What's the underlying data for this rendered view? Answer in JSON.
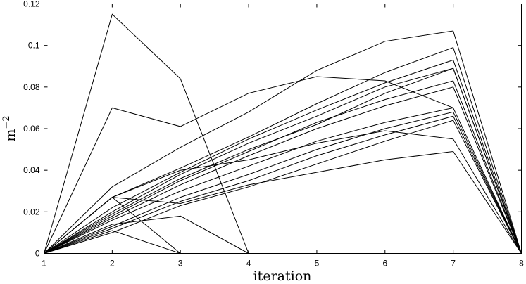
{
  "chart_data": {
    "type": "line",
    "xlabel": "iteration",
    "ylabel": "m",
    "ylabel_exponent": "−2",
    "xlim": [
      1,
      8
    ],
    "ylim": [
      0,
      0.12
    ],
    "xticks": [
      "1",
      "2",
      "3",
      "4",
      "5",
      "6",
      "7",
      "8"
    ],
    "yticks": [
      "0",
      "0.02",
      "0.04",
      "0.06",
      "0.08",
      "0.1",
      "0.12"
    ],
    "grid": false,
    "series": [
      {
        "x": [
          1,
          2,
          3,
          4
        ],
        "values": [
          0,
          0.115,
          0.084,
          0
        ]
      },
      {
        "x": [
          1,
          2,
          3,
          4,
          5,
          6,
          7
        ],
        "values": [
          0,
          0.07,
          0.061,
          0.077,
          0.085,
          0.083,
          0.07
        ]
      },
      {
        "x": [
          1,
          2,
          3,
          4,
          5,
          6,
          7,
          8
        ],
        "values": [
          0,
          0.032,
          0.051,
          0.068,
          0.088,
          0.102,
          0.107,
          0
        ]
      },
      {
        "x": [
          1,
          2,
          3
        ],
        "values": [
          0,
          0.027,
          0
        ]
      },
      {
        "x": [
          1,
          2,
          3
        ],
        "values": [
          0,
          0.011,
          0
        ]
      },
      {
        "x": [
          1,
          2,
          3,
          4
        ],
        "values": [
          0,
          0.014,
          0.018,
          0
        ]
      },
      {
        "x": [
          1,
          2,
          3,
          4,
          5,
          6,
          7,
          8
        ],
        "values": [
          0,
          0.027,
          0.024,
          0.033,
          0.039,
          0.045,
          0.049,
          0
        ]
      },
      {
        "x": [
          1,
          2,
          3,
          4,
          5,
          6,
          7,
          8
        ],
        "values": [
          0,
          0.027,
          0.04,
          0.045,
          0.053,
          0.059,
          0.055,
          0
        ]
      },
      {
        "x": [
          1,
          2,
          3,
          4,
          5,
          6,
          7,
          8
        ],
        "values": [
          0,
          0.01,
          0.023,
          0.032,
          0.043,
          0.054,
          0.064,
          0
        ]
      },
      {
        "x": [
          1,
          2,
          3,
          4,
          5,
          6,
          7,
          8
        ],
        "values": [
          0,
          0.012,
          0.025,
          0.035,
          0.047,
          0.057,
          0.066,
          0
        ]
      },
      {
        "x": [
          1,
          2,
          3,
          4,
          5,
          6,
          7,
          8
        ],
        "values": [
          0,
          0.013,
          0.027,
          0.038,
          0.05,
          0.06,
          0.068,
          0
        ]
      },
      {
        "x": [
          1,
          2,
          3,
          4,
          5,
          6,
          7,
          8
        ],
        "values": [
          0,
          0.016,
          0.03,
          0.042,
          0.054,
          0.063,
          0.07,
          0
        ]
      },
      {
        "x": [
          1,
          2,
          3,
          4,
          5,
          6,
          7,
          8
        ],
        "values": [
          0,
          0.017,
          0.033,
          0.047,
          0.06,
          0.071,
          0.08,
          0
        ]
      },
      {
        "x": [
          1,
          2,
          3,
          4,
          5,
          6,
          7,
          8
        ],
        "values": [
          0,
          0.018,
          0.035,
          0.049,
          0.063,
          0.074,
          0.083,
          0
        ]
      },
      {
        "x": [
          1,
          2,
          3,
          4,
          5,
          6,
          7,
          8
        ],
        "values": [
          0,
          0.019,
          0.036,
          0.05,
          0.062,
          0.077,
          0.089,
          0
        ]
      },
      {
        "x": [
          1,
          2,
          3,
          4,
          5,
          6,
          7,
          8
        ],
        "values": [
          0,
          0.02,
          0.038,
          0.053,
          0.066,
          0.08,
          0.089,
          0
        ]
      },
      {
        "x": [
          1,
          2,
          3,
          4,
          5,
          6,
          7,
          8
        ],
        "values": [
          0,
          0.022,
          0.039,
          0.055,
          0.069,
          0.082,
          0.093,
          0
        ]
      },
      {
        "x": [
          1,
          2,
          3,
          4,
          5,
          6,
          7,
          8
        ],
        "values": [
          0,
          0.027,
          0.041,
          0.056,
          0.072,
          0.087,
          0.099,
          0
        ]
      }
    ]
  }
}
